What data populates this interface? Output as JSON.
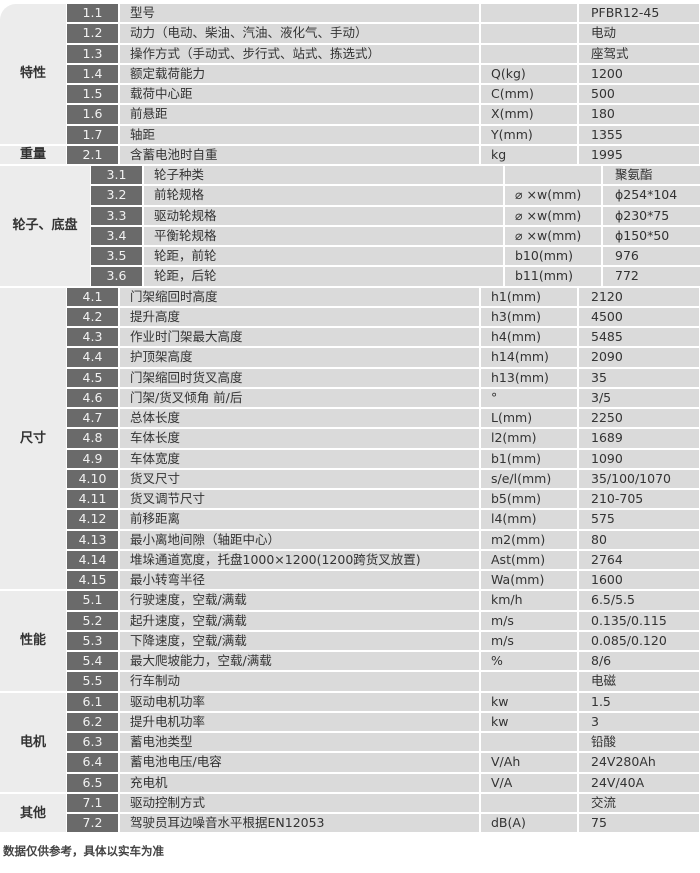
{
  "groups": [
    {
      "category": "特性",
      "rows": [
        {
          "no": "1.1",
          "name": "型号",
          "unit": "",
          "value": "PFBR12-45"
        },
        {
          "no": "1.2",
          "name": "动力（电动、柴油、汽油、液化气、手动）",
          "unit": "",
          "value": "电动"
        },
        {
          "no": "1.3",
          "name": "操作方式（手动式、步行式、站式、拣选式）",
          "unit": "",
          "value": "座驾式"
        },
        {
          "no": "1.4",
          "name": "额定载荷能力",
          "unit": "Q(kg)",
          "value": "1200"
        },
        {
          "no": "1.5",
          "name": "载荷中心距",
          "unit": "C(mm)",
          "value": "500"
        },
        {
          "no": "1.6",
          "name": "前悬距",
          "unit": "X(mm)",
          "value": "180"
        },
        {
          "no": "1.7",
          "name": "轴距",
          "unit": "Y(mm)",
          "value": "1355"
        }
      ]
    },
    {
      "category": "重量",
      "rows": [
        {
          "no": "2.1",
          "name": "含蓄电池时自重",
          "unit": "kg",
          "value": "1995"
        }
      ]
    },
    {
      "category": "轮子、底盘",
      "rows": [
        {
          "no": "3.1",
          "name": "轮子种类",
          "unit": "",
          "value": "聚氨酯"
        },
        {
          "no": "3.2",
          "name": "前轮规格",
          "unit": "⌀ ×w(mm)",
          "value": "ϕ254*104"
        },
        {
          "no": "3.3",
          "name": "驱动轮规格",
          "unit": "⌀ ×w(mm)",
          "value": "ϕ230*75"
        },
        {
          "no": "3.4",
          "name": "平衡轮规格",
          "unit": "⌀ ×w(mm)",
          "value": "ϕ150*50"
        },
        {
          "no": "3.5",
          "name": "轮距，前轮",
          "unit": "b10(mm)",
          "value": "976"
        },
        {
          "no": "3.6",
          "name": "轮距，后轮",
          "unit": "b11(mm)",
          "value": "772"
        }
      ]
    },
    {
      "category": "尺寸",
      "rows": [
        {
          "no": "4.1",
          "name": "门架缩回时高度",
          "unit": "h1(mm)",
          "value": "2120"
        },
        {
          "no": "4.2",
          "name": "提升高度",
          "unit": "h3(mm)",
          "value": "4500"
        },
        {
          "no": "4.3",
          "name": "作业时门架最大高度",
          "unit": "h4(mm)",
          "value": "5485"
        },
        {
          "no": "4.4",
          "name": "护顶架高度",
          "unit": "h14(mm)",
          "value": "2090"
        },
        {
          "no": "4.5",
          "name": "门架缩回时货叉高度",
          "unit": "h13(mm)",
          "value": "35"
        },
        {
          "no": "4.6",
          "name": "门架/货叉倾角 前/后",
          "unit": "°",
          "value": "3/5"
        },
        {
          "no": "4.7",
          "name": "总体长度",
          "unit": "L(mm)",
          "value": "2250"
        },
        {
          "no": "4.8",
          "name": "车体长度",
          "unit": "l2(mm)",
          "value": "1689"
        },
        {
          "no": "4.9",
          "name": "车体宽度",
          "unit": "b1(mm)",
          "value": "1090"
        },
        {
          "no": "4.10",
          "name": "货叉尺寸",
          "unit": "s/e/l(mm)",
          "value": "35/100/1070"
        },
        {
          "no": "4.11",
          "name": "货叉调节尺寸",
          "unit": "b5(mm)",
          "value": "210-705"
        },
        {
          "no": "4.12",
          "name": "前移距离",
          "unit": "l4(mm)",
          "value": "575"
        },
        {
          "no": "4.13",
          "name": "最小离地间隙（轴距中心）",
          "unit": "m2(mm)",
          "value": "80"
        },
        {
          "no": "4.14",
          "name": "堆垛通道宽度，托盘1000×1200(1200跨货叉放置)",
          "unit": "Ast(mm)",
          "value": "2764"
        },
        {
          "no": "4.15",
          "name": "最小转弯半径",
          "unit": "Wa(mm)",
          "value": "1600"
        }
      ]
    },
    {
      "category": "性能",
      "rows": [
        {
          "no": "5.1",
          "name": "行驶速度，空载/满载",
          "unit": "km/h",
          "value": "6.5/5.5"
        },
        {
          "no": "5.2",
          "name": "起升速度，空载/满载",
          "unit": "m/s",
          "value": "0.135/0.115"
        },
        {
          "no": "5.3",
          "name": "下降速度，空载/满载",
          "unit": "m/s",
          "value": "0.085/0.120"
        },
        {
          "no": "5.4",
          "name": "最大爬坡能力，空载/满载",
          "unit": "%",
          "value": "8/6"
        },
        {
          "no": "5.5",
          "name": "行车制动",
          "unit": "",
          "value": "电磁"
        }
      ]
    },
    {
      "category": "电机",
      "rows": [
        {
          "no": "6.1",
          "name": "驱动电机功率",
          "unit": "kw",
          "value": "1.5"
        },
        {
          "no": "6.2",
          "name": "提升电机功率",
          "unit": "kw",
          "value": "3"
        },
        {
          "no": "6.3",
          "name": "蓄电池类型",
          "unit": "",
          "value": "铅酸"
        },
        {
          "no": "6.4",
          "name": "蓄电池电压/电容",
          "unit": "V/Ah",
          "value": "24V280Ah"
        },
        {
          "no": "6.5",
          "name": "充电机",
          "unit": "V/A",
          "value": "24V/40A"
        }
      ]
    },
    {
      "category": "其他",
      "rows": [
        {
          "no": "7.1",
          "name": "驱动控制方式",
          "unit": "",
          "value": "交流"
        },
        {
          "no": "7.2",
          "name": "驾驶员耳边噪音水平根据EN12053",
          "unit": "dB(A)",
          "value": "75"
        }
      ]
    }
  ],
  "footnote": "数据仅供参考，具体以实车为准"
}
